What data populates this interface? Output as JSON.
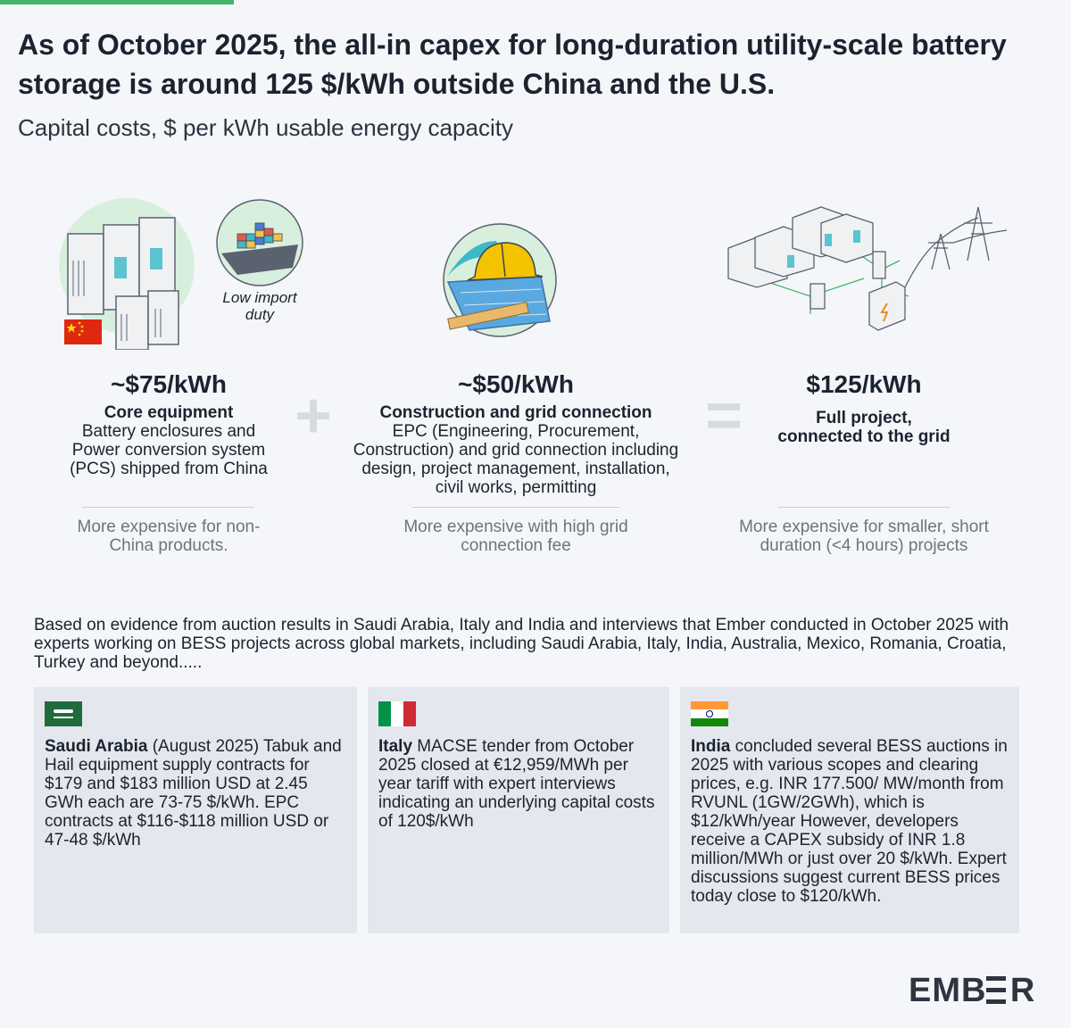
{
  "title": "As of October 2025, the all-in capex for long-duration utility-scale battery storage is around 125 $/kWh outside China and the U.S.",
  "subtitle": "Capital costs, $ per kWh usable energy capacity",
  "columns": [
    {
      "price": "~$75/kWh",
      "heading": "Core equipment",
      "body": "Battery enclosures and Power conversion system (PCS) shipped from China",
      "note": "More expensive for non-China products.",
      "illustration_label": "Low import duty"
    },
    {
      "price": "~$50/kWh",
      "heading": "Construction and grid connection",
      "body": "EPC (Engineering, Procurement, Construction) and grid connection including design, project management, installation, civil works, permitting",
      "note": "More expensive with high grid connection fee"
    },
    {
      "price": "$125/kWh",
      "heading": "Full project, connected to the grid",
      "body": "",
      "note": "More expensive for smaller, short duration (<4 hours) projects"
    }
  ],
  "operators": {
    "plus": "+",
    "equals": "="
  },
  "evidence": "Based on evidence from auction results in Saudi Arabia, Italy and India and interviews that Ember conducted in October 2025 with experts working on BESS projects across global markets, including Saudi Arabia, Italy, India, Australia, Mexico, Romania, Croatia, Turkey and beyond.....",
  "cards": [
    {
      "country": "Saudi Arabia",
      "text": " (August 2025) Tabuk and Hail equipment supply contracts for $179 and $183 million USD at 2.45 GWh each are 73-75 $/kWh. EPC contracts at $116-$118 million USD or 47-48 $/kWh"
    },
    {
      "country": "Italy",
      "text": " MACSE tender from October 2025 closed at €12,959/MWh per year tariff with expert interviews indicating an underlying capital costs of 120$/kWh"
    },
    {
      "country": "India",
      "text": " concluded several BESS auctions in 2025 with various scopes and clearing prices, e.g. INR 177.500/ MW/month from RVUNL (1GW/2GWh), which is $12/kWh/year However, developers receive a CAPEX subsidy of INR 1.8 million/MWh or just over 20 $/kWh. Expert discussions suggest current BESS prices today close to $120/kWh."
    }
  ],
  "logo": {
    "left": "EMB",
    "middle": "E",
    "right": "R"
  },
  "colors": {
    "accent": "#3fb56a",
    "card_bg": "#e4e7ee",
    "teal": "#3fb8c8",
    "note_gray": "#6b7480"
  }
}
